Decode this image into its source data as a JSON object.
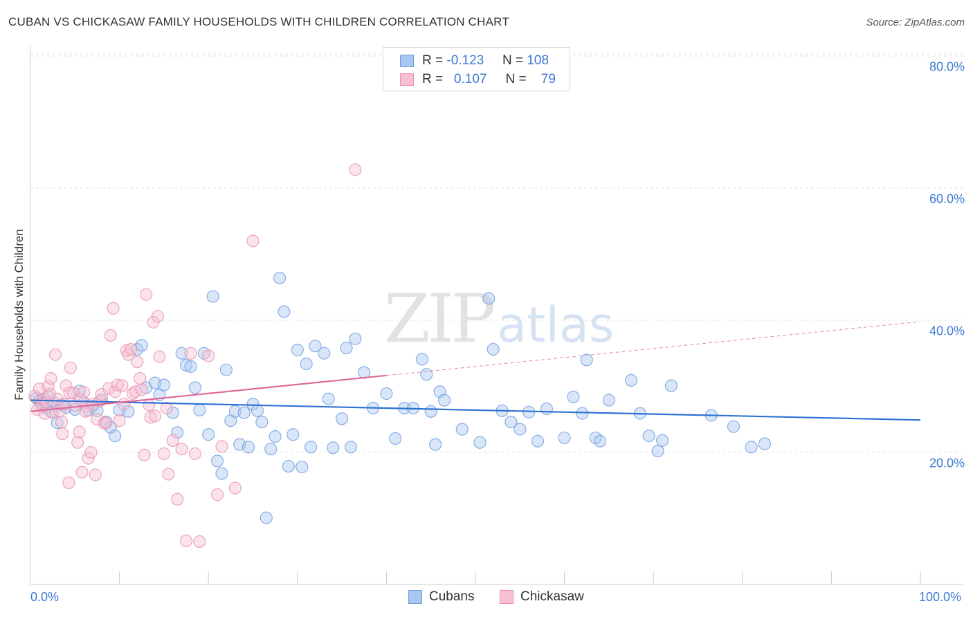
{
  "title": "CUBAN VS CHICKASAW FAMILY HOUSEHOLDS WITH CHILDREN CORRELATION CHART",
  "source": "Source: ZipAtlas.com",
  "watermark": {
    "zip": "ZIP",
    "atlas": "atlas"
  },
  "legend": {
    "rows": [
      {
        "r_label": "R =",
        "r_value": "-0.123",
        "n_label": "N =",
        "n_value": "108",
        "color": "#a9c7f0",
        "border": "#6f9be0"
      },
      {
        "r_label": "R =",
        "r_value": "0.107",
        "n_label": "N =",
        "n_value": "79",
        "color": "#f7c0d3",
        "border": "#e98fae"
      }
    ]
  },
  "bottom_legend": [
    {
      "label": "Cubans",
      "color": "#a9c7f0",
      "border": "#6f9be0"
    },
    {
      "label": "Chickasaw",
      "color": "#f7c0d3",
      "border": "#e98fae"
    }
  ],
  "chart_data": {
    "type": "scatter",
    "title": "CUBAN VS CHICKASAW FAMILY HOUSEHOLDS WITH CHILDREN CORRELATION CHART",
    "xlabel": "",
    "ylabel": "Family Households with Children",
    "xlim": [
      0,
      100
    ],
    "ylim": [
      0,
      82
    ],
    "x_tick_labels": [
      "0.0%",
      "100.0%"
    ],
    "y_ticks": [
      20,
      40,
      60,
      80
    ],
    "y_tick_labels": [
      "20.0%",
      "40.0%",
      "60.0%",
      "80.0%"
    ],
    "grid": true,
    "series": [
      {
        "name": "Cubans",
        "color": "#6f9be0",
        "fill": "#a9c7f0",
        "trend": {
          "x0": 0,
          "y0": 27.9,
          "x1": 100,
          "y1": 24.9,
          "solid_until": 100
        },
        "points": [
          [
            0.7,
            28.2
          ],
          [
            1.0,
            27.8
          ],
          [
            1.2,
            27.4
          ],
          [
            1.5,
            27.0
          ],
          [
            1.8,
            26.7
          ],
          [
            2.0,
            28.5
          ],
          [
            2.3,
            26.2
          ],
          [
            2.6,
            27.5
          ],
          [
            3.0,
            24.5
          ],
          [
            3.5,
            27.2
          ],
          [
            4.0,
            26.8
          ],
          [
            5.0,
            26.5
          ],
          [
            5.5,
            29.3
          ],
          [
            6.0,
            27.5
          ],
          [
            6.5,
            26.4
          ],
          [
            7.0,
            27.0
          ],
          [
            7.5,
            26.3
          ],
          [
            8.0,
            28.0
          ],
          [
            8.5,
            24.6
          ],
          [
            9.0,
            23.8
          ],
          [
            9.5,
            22.5
          ],
          [
            10.0,
            26.4
          ],
          [
            11.0,
            26.2
          ],
          [
            12.0,
            35.6
          ],
          [
            12.5,
            36.2
          ],
          [
            13.0,
            29.8
          ],
          [
            14.0,
            30.5
          ],
          [
            14.5,
            28.7
          ],
          [
            15.0,
            30.2
          ],
          [
            16.0,
            26.0
          ],
          [
            16.5,
            23.0
          ],
          [
            17.0,
            35.0
          ],
          [
            17.5,
            33.2
          ],
          [
            18.0,
            33.0
          ],
          [
            18.5,
            29.8
          ],
          [
            19.0,
            26.4
          ],
          [
            19.5,
            35.0
          ],
          [
            20.0,
            22.7
          ],
          [
            20.5,
            43.6
          ],
          [
            21.0,
            18.7
          ],
          [
            21.5,
            16.8
          ],
          [
            22.0,
            32.5
          ],
          [
            22.5,
            24.8
          ],
          [
            23.0,
            26.2
          ],
          [
            23.5,
            21.2
          ],
          [
            24.0,
            26.0
          ],
          [
            24.5,
            20.8
          ],
          [
            25.0,
            27.3
          ],
          [
            25.5,
            26.3
          ],
          [
            26.0,
            24.6
          ],
          [
            26.5,
            10.1
          ],
          [
            27.0,
            20.5
          ],
          [
            27.5,
            22.4
          ],
          [
            28.0,
            46.4
          ],
          [
            28.5,
            41.3
          ],
          [
            29.0,
            17.9
          ],
          [
            29.5,
            22.7
          ],
          [
            30.0,
            35.5
          ],
          [
            30.5,
            17.8
          ],
          [
            31.0,
            33.4
          ],
          [
            31.5,
            20.8
          ],
          [
            32.0,
            36.1
          ],
          [
            33.0,
            35.0
          ],
          [
            33.5,
            28.1
          ],
          [
            34.0,
            20.7
          ],
          [
            35.0,
            25.1
          ],
          [
            35.5,
            35.8
          ],
          [
            36.0,
            20.8
          ],
          [
            36.5,
            37.2
          ],
          [
            37.5,
            32.1
          ],
          [
            38.5,
            26.7
          ],
          [
            40.0,
            28.9
          ],
          [
            41.0,
            22.1
          ],
          [
            42.0,
            26.7
          ],
          [
            43.0,
            26.7
          ],
          [
            44.0,
            34.1
          ],
          [
            44.5,
            31.8
          ],
          [
            45.0,
            26.2
          ],
          [
            45.5,
            21.2
          ],
          [
            46.0,
            29.2
          ],
          [
            46.5,
            27.9
          ],
          [
            48.5,
            23.5
          ],
          [
            50.5,
            21.5
          ],
          [
            51.5,
            43.3
          ],
          [
            52.0,
            35.6
          ],
          [
            53.0,
            26.3
          ],
          [
            54.0,
            24.6
          ],
          [
            55.0,
            23.5
          ],
          [
            56.0,
            26.1
          ],
          [
            57.0,
            21.7
          ],
          [
            58.0,
            26.6
          ],
          [
            60.0,
            22.2
          ],
          [
            61.0,
            28.4
          ],
          [
            62.0,
            25.9
          ],
          [
            62.5,
            34.0
          ],
          [
            63.5,
            22.2
          ],
          [
            64.0,
            21.7
          ],
          [
            65.0,
            27.9
          ],
          [
            67.5,
            30.9
          ],
          [
            68.5,
            25.9
          ],
          [
            69.5,
            22.5
          ],
          [
            70.5,
            20.2
          ],
          [
            71.0,
            21.8
          ],
          [
            72.0,
            30.1
          ],
          [
            76.5,
            25.6
          ],
          [
            79.0,
            23.9
          ],
          [
            81.0,
            20.8
          ],
          [
            82.5,
            21.3
          ]
        ]
      },
      {
        "name": "Chickasaw",
        "color": "#e98fae",
        "fill": "#f7c0d3",
        "trend": {
          "x0": 0,
          "y0": 26.2,
          "x1": 100,
          "y1": 39.8,
          "solid_until": 40
        },
        "points": [
          [
            0.5,
            28.5
          ],
          [
            1.0,
            29.6
          ],
          [
            1.2,
            27.0
          ],
          [
            1.5,
            28.1
          ],
          [
            1.8,
            27.5
          ],
          [
            2.0,
            30.0
          ],
          [
            2.3,
            31.2
          ],
          [
            2.5,
            26.0
          ],
          [
            2.8,
            34.8
          ],
          [
            3.0,
            28.1
          ],
          [
            3.3,
            26.3
          ],
          [
            3.5,
            24.6
          ],
          [
            3.8,
            27.3
          ],
          [
            4.0,
            30.1
          ],
          [
            4.3,
            15.4
          ],
          [
            4.5,
            32.8
          ],
          [
            4.8,
            29.0
          ],
          [
            5.0,
            27.1
          ],
          [
            5.3,
            21.5
          ],
          [
            5.5,
            23.1
          ],
          [
            5.8,
            17.0
          ],
          [
            6.0,
            29.1
          ],
          [
            6.3,
            27.0
          ],
          [
            6.5,
            19.1
          ],
          [
            6.8,
            20.0
          ],
          [
            7.0,
            27.3
          ],
          [
            7.3,
            16.6
          ],
          [
            7.5,
            25.0
          ],
          [
            7.8,
            27.8
          ],
          [
            8.0,
            28.8
          ],
          [
            8.3,
            24.4
          ],
          [
            8.5,
            24.5
          ],
          [
            8.8,
            29.7
          ],
          [
            9.0,
            37.7
          ],
          [
            9.3,
            41.8
          ],
          [
            9.5,
            29.2
          ],
          [
            9.8,
            30.2
          ],
          [
            10.0,
            24.8
          ],
          [
            10.3,
            30.1
          ],
          [
            10.5,
            27.3
          ],
          [
            10.8,
            35.4
          ],
          [
            11.0,
            34.8
          ],
          [
            11.3,
            35.6
          ],
          [
            11.5,
            28.9
          ],
          [
            11.8,
            29.2
          ],
          [
            12.0,
            33.7
          ],
          [
            12.3,
            31.2
          ],
          [
            12.5,
            29.5
          ],
          [
            12.8,
            19.6
          ],
          [
            13.0,
            43.9
          ],
          [
            13.3,
            27.2
          ],
          [
            13.5,
            25.3
          ],
          [
            13.8,
            39.7
          ],
          [
            14.0,
            25.5
          ],
          [
            14.3,
            40.6
          ],
          [
            14.5,
            34.5
          ],
          [
            15.0,
            19.8
          ],
          [
            15.3,
            26.7
          ],
          [
            15.5,
            16.7
          ],
          [
            16.0,
            21.8
          ],
          [
            16.5,
            12.9
          ],
          [
            17.0,
            20.5
          ],
          [
            17.5,
            6.6
          ],
          [
            18.0,
            35.0
          ],
          [
            18.5,
            19.8
          ],
          [
            19.0,
            6.5
          ],
          [
            20.0,
            34.6
          ],
          [
            21.0,
            13.6
          ],
          [
            21.5,
            20.9
          ],
          [
            23.0,
            14.6
          ],
          [
            25.0,
            52.0
          ],
          [
            36.5,
            62.8
          ],
          [
            0.8,
            26.5
          ],
          [
            1.6,
            25.9
          ],
          [
            2.2,
            28.8
          ],
          [
            3.6,
            22.8
          ],
          [
            4.4,
            29.0
          ],
          [
            5.6,
            28.0
          ],
          [
            6.2,
            26.2
          ]
        ]
      }
    ]
  }
}
